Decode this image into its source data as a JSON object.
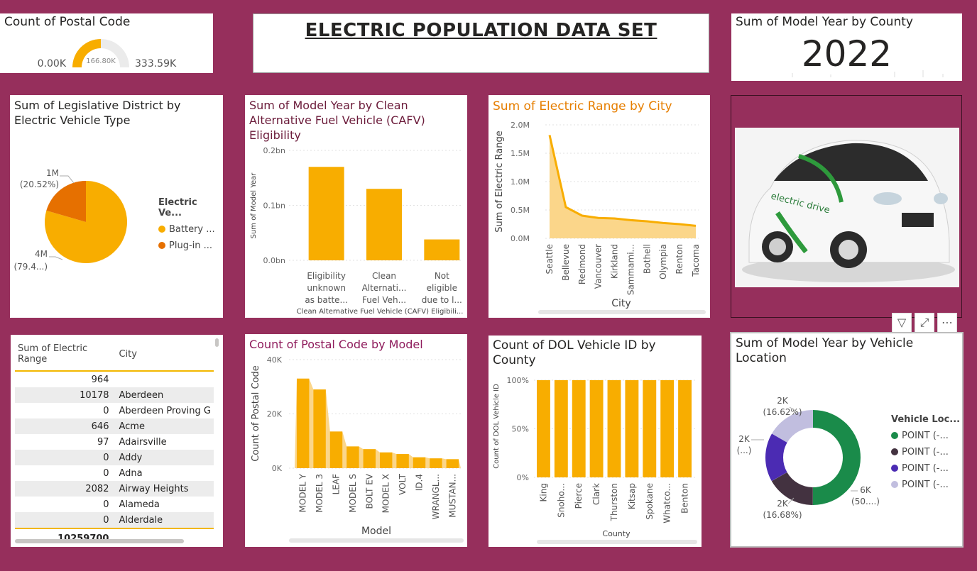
{
  "header": {
    "title": "ELECTRIC POPULATION DATA SET"
  },
  "gauge": {
    "title": "Count of Postal Code",
    "min_label": "0.00K",
    "max_label": "333.59K",
    "value_label": "166.80K",
    "fraction": 0.5,
    "color": "#f8ad00"
  },
  "kpi": {
    "title": "Sum of Model Year by County",
    "value": "2022"
  },
  "pie": {
    "title": "Sum of Legislative District by Electric Vehicle Type",
    "legend_title": "Electric Ve...",
    "slices": [
      {
        "label": "Battery ...",
        "value": 79.48,
        "callout_value": "4M",
        "callout_pct": "(79.4...)",
        "color": "#f8ad00"
      },
      {
        "label": "Plug-in ...",
        "value": 20.52,
        "callout_value": "1M",
        "callout_pct": "(20.52%)",
        "color": "#e67000"
      }
    ]
  },
  "cafv": {
    "title": "Sum of Model Year by Clean Alternative Fuel Vehicle (CAFV) Eligibility",
    "ylabel": "Sum of Model Year",
    "xlabel": "Clean Alternative Fuel Vehicle (CAFV) Eligibili...",
    "ticks": [
      "0.0bn",
      "0.1bn",
      "0.2bn"
    ],
    "categories": [
      [
        "Eligibility",
        "unknown",
        "as batte..."
      ],
      [
        "Clean",
        "Alternati...",
        "Fuel Veh..."
      ],
      [
        "Not",
        "eligible",
        "due to l..."
      ]
    ]
  },
  "range_city": {
    "title": "Sum of Electric Range by City",
    "ylabel": "Sum of Electric Range",
    "xlabel": "City",
    "ticks": [
      "0.0M",
      "0.5M",
      "1.0M",
      "1.5M",
      "2.0M"
    ]
  },
  "image": {
    "alt": "electric drive"
  },
  "table": {
    "headers": [
      "Sum of Electric Range",
      "City"
    ],
    "rows": [
      [
        "964",
        ""
      ],
      [
        "10178",
        "Aberdeen"
      ],
      [
        "0",
        "Aberdeen Proving G"
      ],
      [
        "646",
        "Acme"
      ],
      [
        "97",
        "Adairsville"
      ],
      [
        "0",
        "Addy"
      ],
      [
        "0",
        "Adna"
      ],
      [
        "2082",
        "Airway Heights"
      ],
      [
        "0",
        "Alameda"
      ],
      [
        "0",
        "Alderdale"
      ]
    ],
    "total": "10259700"
  },
  "model": {
    "title": "Count of Postal Code by Model",
    "ylabel": "Count of Postal Code",
    "xlabel": "Model",
    "ticks": [
      "0K",
      "20K",
      "40K"
    ]
  },
  "dol": {
    "title": "Count of DOL Vehicle ID by County",
    "ylabel": "Count of DOL Vehicle ID",
    "xlabel": "County",
    "ticks": [
      "0%",
      "50%",
      "100%"
    ]
  },
  "donut": {
    "title": "Sum of Model Year by Vehicle Location",
    "legend_title": "Vehicle Loc...",
    "slices": [
      {
        "label": "POINT (-...",
        "value": 50.08,
        "callout_value": "6K",
        "callout_pct": "(50....)",
        "color": "#1a8b4a"
      },
      {
        "label": "POINT (-...",
        "value": 16.68,
        "callout_value": "2K",
        "callout_pct": "(16.68%)",
        "color": "#433240"
      },
      {
        "label": "POINT (-...",
        "value": 16.62,
        "callout_value": "2K",
        "callout_pct": "(...)",
        "color": "#4b2bb3"
      },
      {
        "label": "POINT (-...",
        "value": 16.62,
        "callout_value": "2K",
        "callout_pct": "(16.62%)",
        "color": "#c1bedf"
      }
    ]
  },
  "chart_data": [
    {
      "type": "bar",
      "title": "Sum of Model Year by Clean Alternative Fuel Vehicle (CAFV) Eligibility",
      "categories": [
        "Eligibility unknown as batte...",
        "Clean Alternati... Fuel Veh...",
        "Not eligible due to l..."
      ],
      "values": [
        0.17,
        0.13,
        0.038
      ],
      "ylabel": "Sum of Model Year",
      "xlabel": "Clean Alternative Fuel Vehicle (CAFV) Eligibili...",
      "ylim": [
        0,
        0.2
      ],
      "unit": "bn",
      "color": "#f8ad00"
    },
    {
      "type": "area",
      "title": "Sum of Electric Range by City",
      "categories": [
        "Seattle",
        "Bellevue",
        "Redmond",
        "Vancouver",
        "Kirkland",
        "Sammami...",
        "Bothell",
        "Olympia",
        "Renton",
        "Tacoma"
      ],
      "values": [
        1.82,
        0.55,
        0.4,
        0.36,
        0.35,
        0.32,
        0.3,
        0.27,
        0.25,
        0.22
      ],
      "ylabel": "Sum of Electric Range",
      "xlabel": "City",
      "ylim": [
        0,
        2.0
      ],
      "unit": "M",
      "color": "#f8ad00"
    },
    {
      "type": "area",
      "title": "Count of Postal Code by Model",
      "categories": [
        "MODEL Y",
        "MODEL 3",
        "LEAF",
        "MODEL S",
        "BOLT EV",
        "MODEL X",
        "VOLT",
        "ID.4",
        "WRANGL...",
        "MUSTAN..."
      ],
      "values": [
        33,
        29,
        13.5,
        8,
        7,
        5.8,
        5.2,
        4,
        3.6,
        3.3
      ],
      "ylabel": "Count of Postal Code",
      "xlabel": "Model",
      "ylim": [
        0,
        40
      ],
      "unit": "K",
      "color": "#f8ad00"
    },
    {
      "type": "bar",
      "title": "Count of DOL Vehicle ID by County",
      "categories": [
        "King",
        "Snoho...",
        "Pierce",
        "Clark",
        "Thurston",
        "Kitsap",
        "Spokane",
        "Whatco...",
        "Benton"
      ],
      "values": [
        100,
        100,
        100,
        100,
        100,
        100,
        100,
        100,
        100
      ],
      "ylabel": "Count of DOL Vehicle ID",
      "xlabel": "County",
      "ylim": [
        0,
        100
      ],
      "unit": "%",
      "color": "#f8ad00"
    }
  ]
}
